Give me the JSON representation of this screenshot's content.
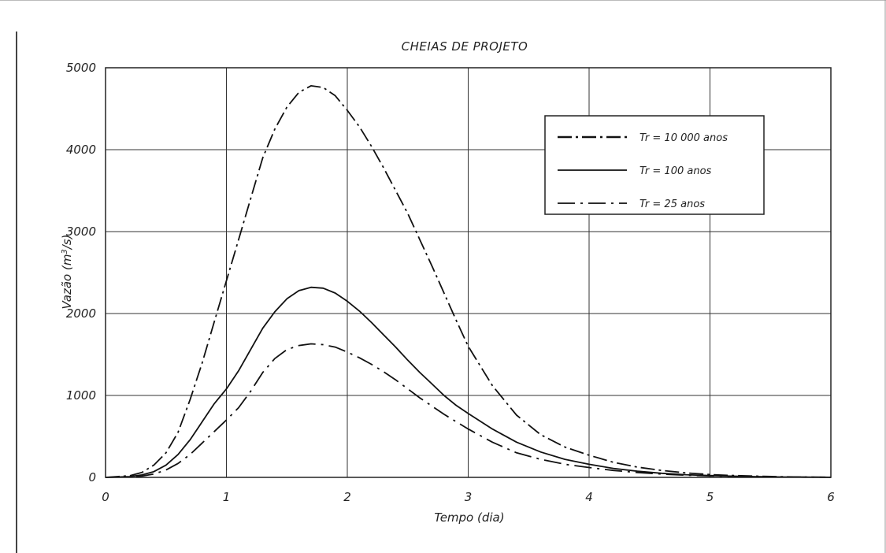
{
  "chart_data": {
    "type": "line",
    "title": "CHEIAS DE PROJETO",
    "xlabel": "Tempo (dia)",
    "ylabel_main": "Vazão (m",
    "ylabel_sup": "3",
    "ylabel_tail": "/s)",
    "xlim": [
      0,
      6
    ],
    "ylim": [
      0,
      5000
    ],
    "x_ticks": [
      "0",
      "1",
      "2",
      "3",
      "4",
      "5",
      "6"
    ],
    "y_ticks": [
      "0",
      "1000",
      "2000",
      "3000",
      "4000",
      "5000"
    ],
    "grid": true,
    "legend_position": "top-right",
    "series": [
      {
        "name": "Tr = 10 000 anos",
        "style": "dash-dot",
        "x": [
          0,
          0.2,
          0.3,
          0.4,
          0.5,
          0.6,
          0.7,
          0.8,
          0.9,
          1.0,
          1.1,
          1.2,
          1.3,
          1.4,
          1.5,
          1.6,
          1.7,
          1.8,
          1.9,
          2.0,
          2.1,
          2.2,
          2.3,
          2.4,
          2.5,
          2.6,
          2.7,
          2.8,
          2.9,
          3.0,
          3.2,
          3.4,
          3.6,
          3.8,
          4.0,
          4.2,
          4.4,
          4.6,
          4.8,
          5.0,
          5.2,
          5.4,
          5.6,
          5.8,
          6.0
        ],
        "y": [
          0,
          20,
          60,
          150,
          300,
          550,
          950,
          1400,
          1900,
          2400,
          2900,
          3400,
          3900,
          4250,
          4520,
          4700,
          4780,
          4760,
          4660,
          4480,
          4280,
          4040,
          3780,
          3500,
          3220,
          2900,
          2580,
          2250,
          1920,
          1600,
          1120,
          760,
          520,
          370,
          270,
          185,
          125,
          85,
          55,
          35,
          22,
          14,
          8,
          4,
          2
        ]
      },
      {
        "name": "Tr = 100 anos",
        "style": "solid",
        "x": [
          0,
          0.2,
          0.3,
          0.4,
          0.5,
          0.6,
          0.7,
          0.8,
          0.9,
          1.0,
          1.1,
          1.2,
          1.3,
          1.4,
          1.5,
          1.6,
          1.7,
          1.8,
          1.9,
          2.0,
          2.1,
          2.2,
          2.3,
          2.4,
          2.5,
          2.6,
          2.7,
          2.8,
          2.9,
          3.0,
          3.2,
          3.4,
          3.6,
          3.8,
          4.0,
          4.2,
          4.4,
          4.6,
          4.8,
          5.0,
          5.2,
          5.4,
          5.6,
          5.8,
          6.0
        ],
        "y": [
          0,
          10,
          30,
          70,
          150,
          280,
          460,
          680,
          900,
          1080,
          1300,
          1560,
          1820,
          2020,
          2180,
          2280,
          2320,
          2310,
          2250,
          2150,
          2030,
          1890,
          1740,
          1590,
          1430,
          1280,
          1140,
          1000,
          880,
          780,
          590,
          430,
          310,
          220,
          160,
          110,
          75,
          50,
          33,
          22,
          14,
          9,
          5,
          3,
          1
        ]
      },
      {
        "name": "Tr = 25 anos",
        "style": "long-dash-dot",
        "x": [
          0,
          0.2,
          0.3,
          0.4,
          0.5,
          0.6,
          0.7,
          0.8,
          0.9,
          1.0,
          1.1,
          1.2,
          1.3,
          1.4,
          1.5,
          1.6,
          1.7,
          1.8,
          1.9,
          2.0,
          2.1,
          2.2,
          2.3,
          2.4,
          2.5,
          2.6,
          2.7,
          2.8,
          2.9,
          3.0,
          3.2,
          3.4,
          3.6,
          3.8,
          4.0,
          4.2,
          4.4,
          4.6,
          4.8,
          5.0,
          5.2,
          5.4,
          5.6,
          5.8,
          6.0
        ],
        "y": [
          0,
          5,
          15,
          40,
          90,
          170,
          280,
          420,
          560,
          700,
          850,
          1050,
          1280,
          1450,
          1560,
          1610,
          1630,
          1620,
          1590,
          1530,
          1460,
          1380,
          1290,
          1190,
          1080,
          970,
          870,
          770,
          680,
          590,
          430,
          300,
          220,
          160,
          120,
          85,
          60,
          40,
          27,
          18,
          12,
          8,
          5,
          3,
          1
        ]
      }
    ]
  }
}
